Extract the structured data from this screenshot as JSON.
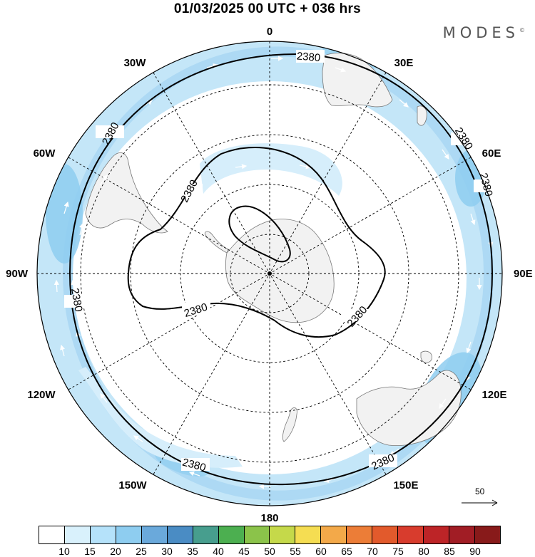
{
  "title": "01/03/2025  00 UTC  + 036 hrs",
  "brand": "MODES",
  "brand_mark": "©",
  "longitude_labels": {
    "n0": "0",
    "e30": "30E",
    "e60": "60E",
    "e90": "90E",
    "e120": "120E",
    "e150": "150E",
    "s180": "180",
    "w150": "150W",
    "w120": "120W",
    "w90": "90W",
    "w60": "60W",
    "w30": "30W"
  },
  "contour_value": "2380",
  "reference_vector": {
    "label": "50",
    "icon": "arrow-right-icon"
  },
  "colorbar": {
    "colors": [
      "#ffffff",
      "#d9f1fc",
      "#b5e2fa",
      "#8ecdf0",
      "#6aa9db",
      "#4a8cc4",
      "#479e8e",
      "#4caf50",
      "#8bc34a",
      "#c5d94a",
      "#f5dd52",
      "#f3a949",
      "#ec7d37",
      "#e25a2c",
      "#d83c2d",
      "#bd2427",
      "#a11d25",
      "#881a1a"
    ],
    "labels": [
      "10",
      "15",
      "20",
      "25",
      "30",
      "35",
      "40",
      "45",
      "50",
      "55",
      "60",
      "65",
      "70",
      "75",
      "80",
      "85",
      "90"
    ]
  }
}
